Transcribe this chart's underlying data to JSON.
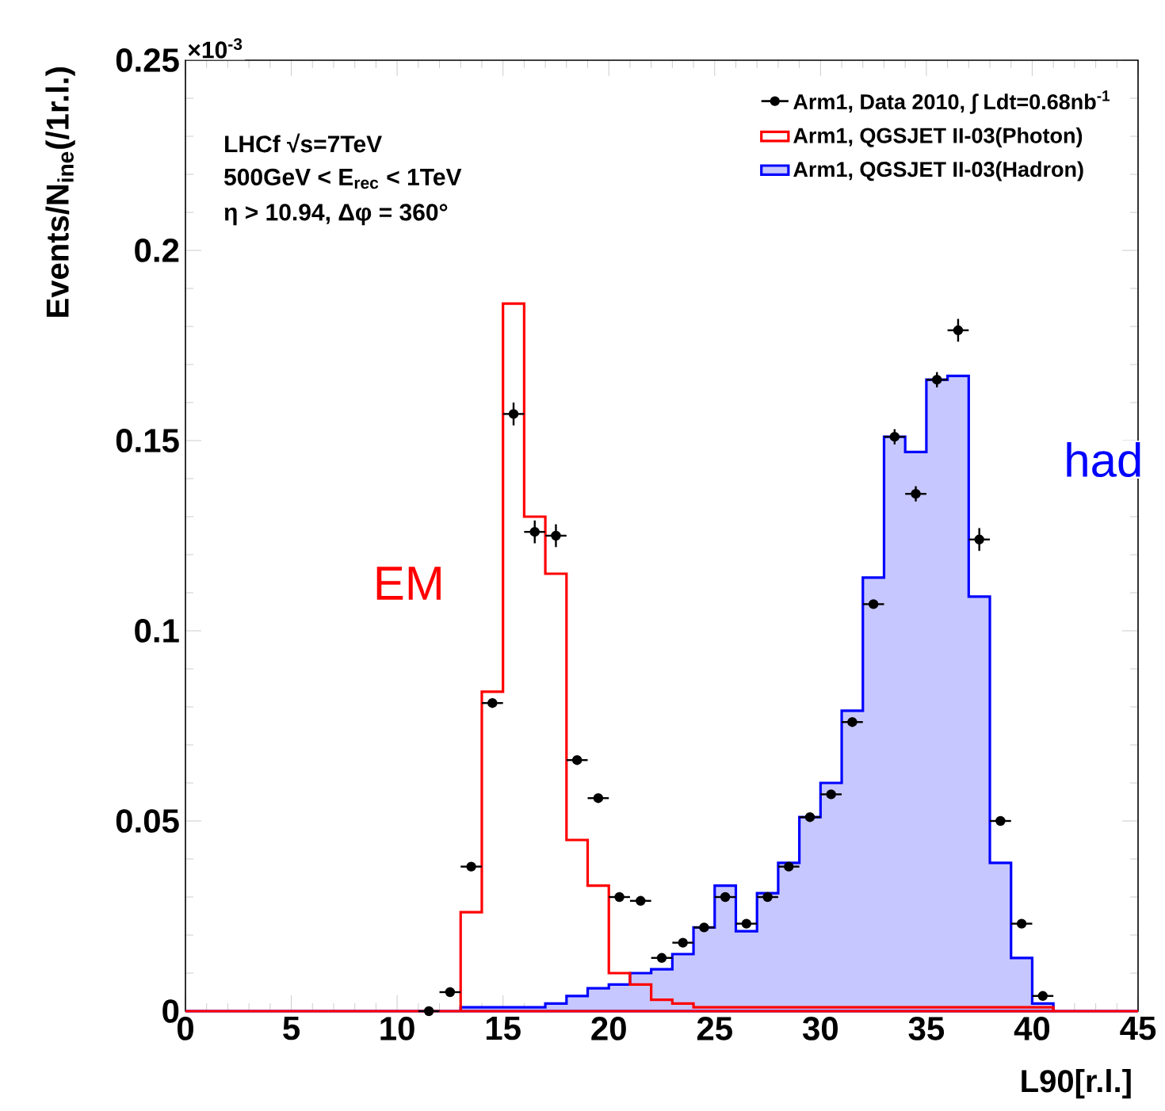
{
  "chart_data": {
    "type": "histogram",
    "xlabel": "L90[r.l.]",
    "ylabel": "Events/N$_{ine}$(/1r.l.)",
    "bins": [
      0,
      1,
      2,
      3,
      4,
      5,
      6,
      7,
      8,
      9,
      10,
      11,
      12,
      13,
      14,
      15,
      16,
      17,
      18,
      19,
      20,
      21,
      22,
      23,
      24,
      25,
      26,
      27,
      28,
      29,
      30,
      31,
      32,
      33,
      34,
      35,
      36,
      37,
      38,
      39,
      40,
      41,
      42,
      43,
      44,
      45
    ],
    "series": [
      {
        "name": "Arm1, Data 2010, ∫ Ldt=0.68nb$^{-1}$",
        "type": "scatter",
        "color": "#000000",
        "marker": "circle",
        "x": [
          11.5,
          12.5,
          13.5,
          14.5,
          15.5,
          16.5,
          17.5,
          18.5,
          19.5,
          20.5,
          21.5,
          22.5,
          23.5,
          24.5,
          25.5,
          26.5,
          27.5,
          28.5,
          29.5,
          30.5,
          31.5,
          32.5,
          33.5,
          34.5,
          35.5,
          36.5,
          37.5,
          38.5,
          39.5,
          40.5
        ],
        "values": [
          0.0,
          0.005,
          0.038,
          0.081,
          0.157,
          0.126,
          0.125,
          0.066,
          0.056,
          0.03,
          0.029,
          0.014,
          0.018,
          0.022,
          0.03,
          0.023,
          0.03,
          0.038,
          0.051,
          0.057,
          0.076,
          0.107,
          0.151,
          0.136,
          0.166,
          0.179,
          0.124,
          0.05,
          0.023,
          0.004
        ],
        "xerrors": [
          0.5,
          0.5,
          0.5,
          0.5,
          0.5,
          0.5,
          0.5,
          0.5,
          0.5,
          0.5,
          0.5,
          0.5,
          0.5,
          0.5,
          0.5,
          0.5,
          0.5,
          0.5,
          0.5,
          0.5,
          0.5,
          0.5,
          0.5,
          0.5,
          0.5,
          0.5,
          0.5,
          0.5,
          0.5,
          0.5
        ],
        "errors": [
          null,
          null,
          null,
          null,
          0.003,
          0.003,
          0.003,
          null,
          null,
          null,
          null,
          null,
          null,
          null,
          null,
          null,
          null,
          null,
          null,
          null,
          null,
          null,
          0.002,
          0.002,
          0.002,
          0.003,
          0.003,
          null,
          null,
          null
        ]
      },
      {
        "name": "Arm1, QGSJET II-03(Photon)",
        "color": "#ff0000",
        "values": [
          0,
          0,
          0,
          0,
          0,
          0,
          0,
          0,
          0,
          0,
          0,
          0,
          0,
          0.026,
          0.084,
          0.186,
          0.13,
          0.115,
          0.045,
          0.033,
          0.01,
          0.007,
          0.003,
          0.002,
          0.001,
          0.001,
          0.001,
          0.001,
          0.001,
          0.001,
          0.001,
          0.001,
          0.001,
          0.001,
          0.001,
          0.001,
          0.001,
          0.001,
          0.001,
          0.001,
          0.001,
          0,
          0,
          0,
          0
        ]
      },
      {
        "name": "Arm1, QGSJET II-03(Hadron)",
        "color": "#0000ff",
        "values": [
          0,
          0,
          0,
          0,
          0,
          0,
          0,
          0,
          0,
          0,
          0,
          0,
          0,
          0.001,
          0.001,
          0.001,
          0.001,
          0.002,
          0.004,
          0.006,
          0.007,
          0.01,
          0.011,
          0.015,
          0.022,
          0.033,
          0.021,
          0.031,
          0.039,
          0.051,
          0.06,
          0.079,
          0.114,
          0.151,
          0.147,
          0.166,
          0.167,
          0.109,
          0.039,
          0.014,
          0.002,
          0,
          0,
          0,
          0
        ]
      }
    ],
    "xlim": [
      0,
      45
    ],
    "ylim": [
      0,
      0.25
    ],
    "xticks": [
      0,
      5,
      10,
      15,
      20,
      25,
      30,
      35,
      40,
      45
    ],
    "yticks": [
      0,
      0.05,
      0.1,
      0.15,
      0.2,
      0.25
    ],
    "legend": "top right",
    "grid": false,
    "annotations": [
      "×10$^{-3}$",
      "LHCf √s=7TeV",
      "500GeV < E$_{rec}$ < 1TeV",
      "η > 10.94, Δφ = 360°",
      "EM",
      "had"
    ]
  }
}
